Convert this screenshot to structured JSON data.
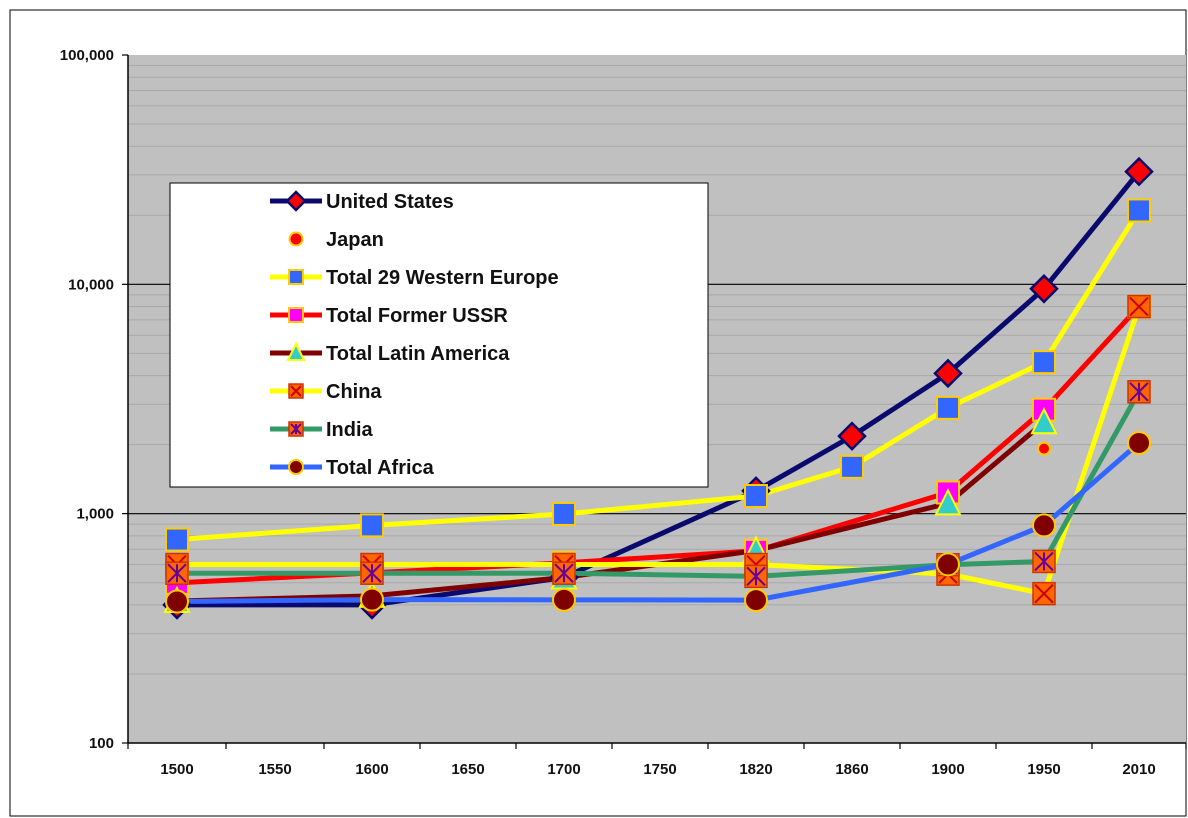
{
  "chart_data": {
    "type": "line",
    "title": "",
    "xlabel": "",
    "ylabel": "",
    "y_scale": "log",
    "ylim": [
      100,
      100000
    ],
    "y_ticks": [
      100,
      1000,
      10000,
      100000
    ],
    "y_tick_labels": [
      "100",
      "1,000",
      "10,000",
      "100,000"
    ],
    "y_gridlines_major": [
      1000,
      10000
    ],
    "x_ticks": [
      1500,
      1550,
      1600,
      1650,
      1700,
      1750,
      1820,
      1860,
      1900,
      1950,
      2010
    ],
    "x_tick_labels": [
      "1500",
      "1550",
      "1600",
      "1650",
      "1700",
      "1750",
      "1820",
      "1860",
      "1900",
      "1950",
      "2010"
    ],
    "plot_background": "#c0c0c0",
    "legend_position": "upper-left",
    "series": [
      {
        "name": "United States",
        "color": "#0a0a6e",
        "marker": "diamond",
        "marker_fill": "#ff0000",
        "x": [
          1500,
          1600,
          1700,
          1820,
          1860,
          1900,
          1950,
          2010
        ],
        "y": [
          400,
          400,
          527,
          1257,
          2178,
          4091,
          9561,
          31000
        ]
      },
      {
        "name": "Japan",
        "color": "#ff0000",
        "marker": "circle",
        "marker_fill": "#ff0000",
        "line": false,
        "x": [
          1950
        ],
        "y": [
          1921
        ]
      },
      {
        "name": "Total 29 Western Europe",
        "color": "#ffff00",
        "marker": "square",
        "marker_fill": "#3366ff",
        "x": [
          1500,
          1600,
          1700,
          1820,
          1860,
          1900,
          1950,
          2010
        ],
        "y": [
          771,
          889,
          997,
          1194,
          1600,
          2893,
          4579,
          21000
        ]
      },
      {
        "name": "Total Former USSR",
        "color": "#ff0000",
        "marker": "square",
        "marker_fill": "#ff00ff",
        "x": [
          1500,
          1600,
          1700,
          1820,
          1900,
          1950,
          2010
        ],
        "y": [
          499,
          552,
          610,
          688,
          1237,
          2841,
          8000
        ]
      },
      {
        "name": "Total Latin America",
        "color": "#7f0000",
        "marker": "triangle",
        "marker_fill": "#33cccc",
        "x": [
          1500,
          1600,
          1700,
          1820,
          1900,
          1950
        ],
        "y": [
          416,
          438,
          527,
          691,
          1109,
          2503
        ]
      },
      {
        "name": "China",
        "color": "#ffff00",
        "marker": "square-x",
        "marker_fill": "#ff6600",
        "x": [
          1500,
          1600,
          1700,
          1820,
          1900,
          1950,
          2010
        ],
        "y": [
          600,
          600,
          600,
          600,
          545,
          448,
          8000
        ]
      },
      {
        "name": "India",
        "color": "#339966",
        "marker": "square-star",
        "marker_fill": "#ff6600",
        "x": [
          1500,
          1600,
          1700,
          1820,
          1900,
          1950,
          2010
        ],
        "y": [
          550,
          550,
          550,
          533,
          599,
          619,
          3400
        ]
      },
      {
        "name": "Total Africa",
        "color": "#3366ff",
        "marker": "circle",
        "marker_fill": "#800000",
        "x": [
          1500,
          1600,
          1700,
          1820,
          1900,
          1950,
          2010
        ],
        "y": [
          414,
          422,
          421,
          420,
          601,
          889,
          2034
        ]
      }
    ]
  }
}
